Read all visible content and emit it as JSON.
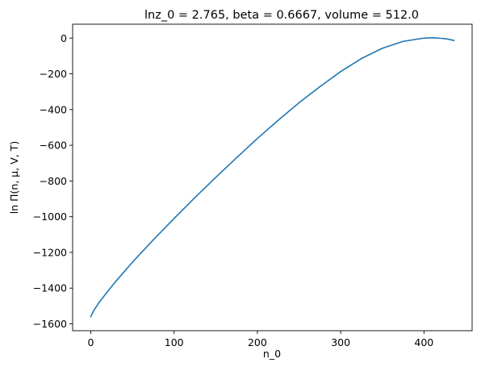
{
  "chart_data": {
    "type": "line",
    "title": "lnz_0 = 2.765, beta = 0.6667, volume = 512.0",
    "xlabel": "n_0",
    "ylabel": "ln Π(n, μ, V, T)",
    "xlim": [
      -21.8,
      457.8
    ],
    "ylim": [
      -1638.5,
      78.0
    ],
    "xticks": [
      0,
      100,
      200,
      300,
      400
    ],
    "yticks": [
      0,
      -200,
      -400,
      -600,
      -800,
      -1000,
      -1200,
      -1400,
      -1600
    ],
    "xtick_labels": [
      "0",
      "100",
      "200",
      "300",
      "400"
    ],
    "ytick_labels": [
      "0",
      "−200",
      "−400",
      "−600",
      "−800",
      "−1000",
      "−1200",
      "−1400",
      "−1600"
    ],
    "grid": false,
    "series": [
      {
        "color": "#1f77b4",
        "x": [
          0,
          2,
          5,
          10,
          20,
          30,
          50,
          75,
          100,
          125,
          150,
          175,
          200,
          225,
          250,
          275,
          300,
          325,
          350,
          375,
          400,
          410,
          415,
          420,
          425,
          430,
          436
        ],
        "y": [
          -1560,
          -1540,
          -1515,
          -1480,
          -1420,
          -1362,
          -1255,
          -1130,
          -1010,
          -893,
          -780,
          -670,
          -562,
          -460,
          -362,
          -272,
          -187,
          -114,
          -57,
          -18,
          0,
          2,
          1,
          -1,
          -3,
          -7,
          -13
        ]
      }
    ]
  }
}
